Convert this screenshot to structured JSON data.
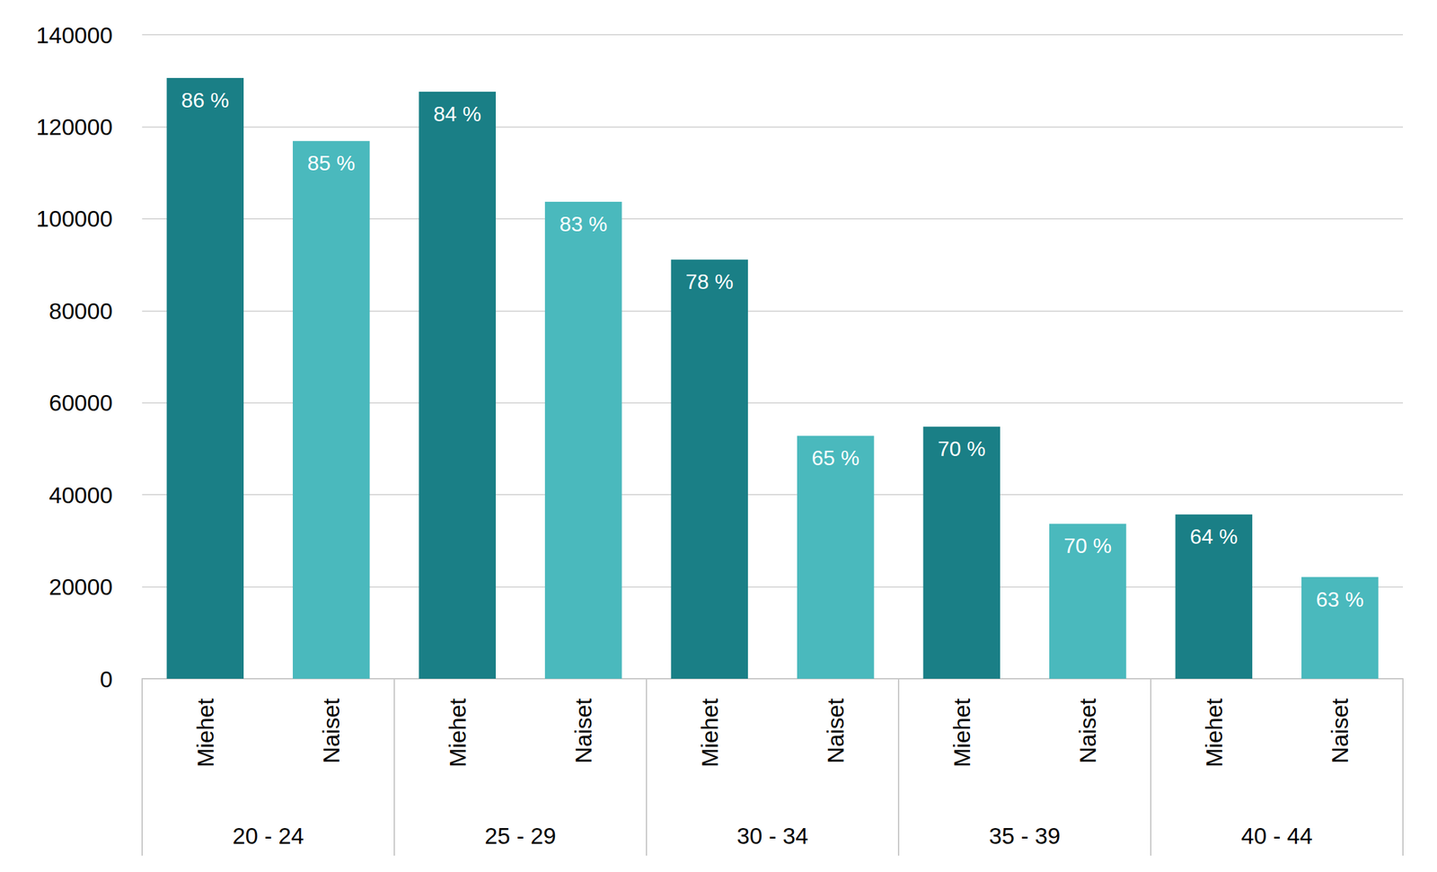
{
  "chart_data": {
    "type": "bar",
    "categories": [
      "20 - 24",
      "25 - 29",
      "30 - 34",
      "35 - 39",
      "40 - 44"
    ],
    "series": [
      {
        "name": "Miehet",
        "color": "#1a7f86",
        "values": [
          130600,
          127600,
          91100,
          54800,
          35700
        ],
        "percent_labels": [
          "86 %",
          "84 %",
          "78 %",
          "70 %",
          "64 %"
        ]
      },
      {
        "name": "Naiset",
        "color": "#4ab9bd",
        "values": [
          116900,
          103700,
          52800,
          33700,
          22100
        ],
        "percent_labels": [
          "85 %",
          "83 %",
          "65 %",
          "70 %",
          "63 %"
        ]
      }
    ],
    "ylim": [
      0,
      140000
    ],
    "yticks": [
      0,
      20000,
      40000,
      60000,
      80000,
      100000,
      120000,
      140000
    ],
    "grid": true
  }
}
